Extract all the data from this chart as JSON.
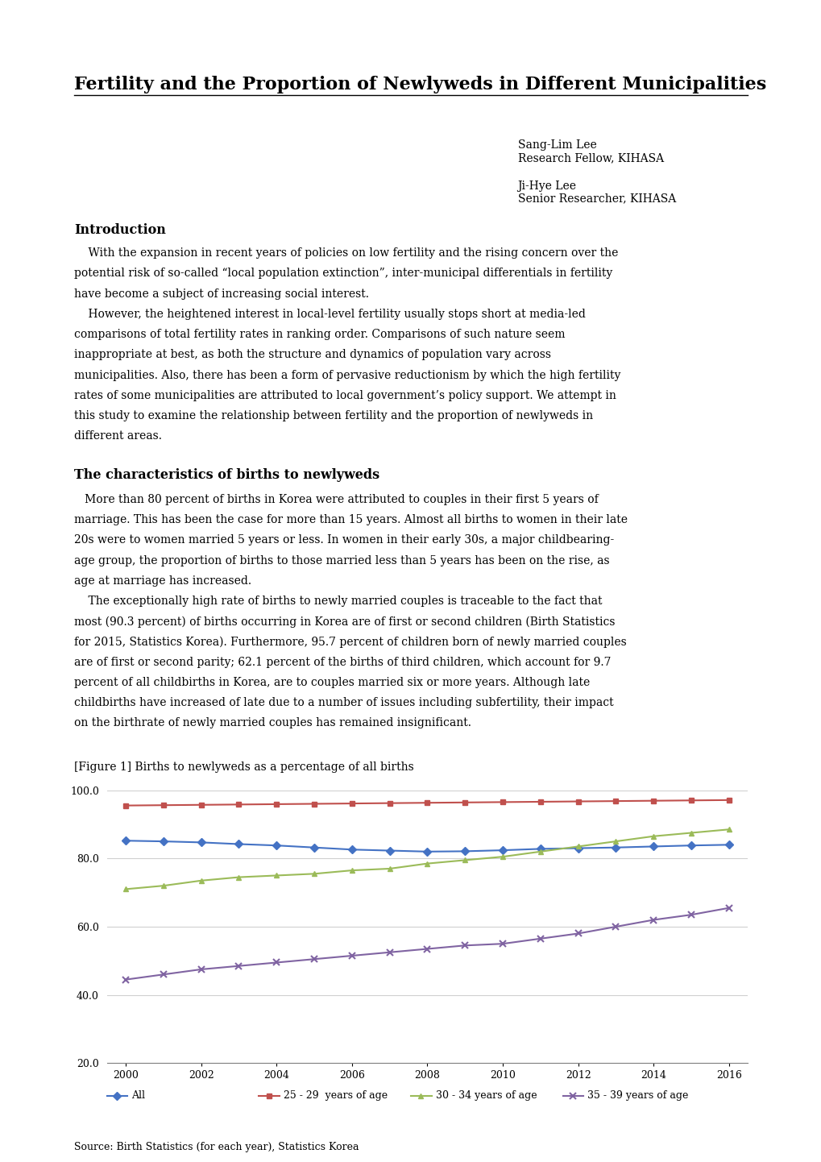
{
  "title": "Fertility and the Proportion of Newlyweds in Different Municipalities",
  "figure_label": "[Figure 1] Births to newlyweds as a percentage of all births",
  "source_text": "Source: Birth Statistics (for each year), Statistics Korea",
  "authors": [
    "Sang-Lim Lee\nResearch Fellow, KIHASA",
    "Ji-Hye Lee\nSenior Researcher, KIHASA"
  ],
  "intro_heading": "Introduction",
  "intro_text": "    With the expansion in recent years of policies on low fertility and the rising concern over the potential risk of so-called “local population extinction”, inter-municipal differentials in fertility have become a subject of increasing social interest.\n    However, the heightened interest in local-level fertility usually stops short at media-led comparisons of total fertility rates in ranking order. Comparisons of such nature seem inappropriate at best, as both the structure and dynamics of population vary across municipalities. Also, there has been a form of pervasive reductionism by which the high fertility rates of some municipalities are attributed to local government’s policy support. We attempt in this study to examine the relationship between fertility and the proportion of newlyweds in different areas.",
  "section2_heading": "The characteristics of births to newlyweds",
  "section2_text": "   More than 80 percent of births in Korea were attributed to couples in their first 5 years of marriage. This has been the case for more than 15 years. Almost all births to women in their late 20s were to women married 5 years or less. In women in their early 30s, a major childbearing-age group, the proportion of births to those married less than 5 years has been on the rise, as age at marriage has increased.\n    The exceptionally high rate of births to newly married couples is traceable to the fact that most (90.3 percent) of births occurring in Korea are of first or second children (Birth Statistics for 2015, Statistics Korea). Furthermore, 95.7 percent of children born of newly married couples are of first or second parity; 62.1 percent of the births of third children, which account for 9.7 percent of all childbirths in Korea, are to couples married six or more years. Although late childbirths have increased of late due to a number of issues including subfertility, their impact on the birthrate of newly married couples has remained insignificant.",
  "years": [
    2000,
    2001,
    2002,
    2003,
    2004,
    2005,
    2006,
    2007,
    2008,
    2009,
    2010,
    2011,
    2012,
    2013,
    2014,
    2015,
    2016
  ],
  "all_ages": [
    85.2,
    85.0,
    84.7,
    84.2,
    83.8,
    83.2,
    82.6,
    82.3,
    82.0,
    82.1,
    82.4,
    82.8,
    83.0,
    83.2,
    83.5,
    83.8,
    84.0
  ],
  "age_25_29": [
    95.5,
    95.6,
    95.7,
    95.8,
    95.9,
    96.0,
    96.1,
    96.2,
    96.3,
    96.4,
    96.5,
    96.6,
    96.7,
    96.8,
    96.9,
    97.0,
    97.1
  ],
  "age_30_34": [
    71.0,
    72.0,
    73.5,
    74.5,
    75.0,
    75.5,
    76.5,
    77.0,
    78.5,
    79.5,
    80.5,
    82.0,
    83.5,
    85.0,
    86.5,
    87.5,
    88.5
  ],
  "age_35_39": [
    44.5,
    46.0,
    47.5,
    48.5,
    49.5,
    50.5,
    51.5,
    52.5,
    53.5,
    54.5,
    55.0,
    56.5,
    58.0,
    60.0,
    62.0,
    63.5,
    65.5
  ],
  "ylim": [
    20.0,
    100.0
  ],
  "yticks": [
    20.0,
    40.0,
    60.0,
    80.0,
    100.0
  ],
  "xticks": [
    2000,
    2002,
    2004,
    2006,
    2008,
    2010,
    2012,
    2014,
    2016
  ],
  "colors": {
    "all": "#4472C4",
    "age_25_29": "#C0504D",
    "age_30_34": "#9BBB59",
    "age_35_39": "#8064A2"
  },
  "legend_labels": [
    "All",
    "25 - 29  years of age",
    "30 - 34 years of age",
    "35 - 39 years of age"
  ],
  "background_color": "#FFFFFF",
  "grid_color": "#D0D0D0"
}
